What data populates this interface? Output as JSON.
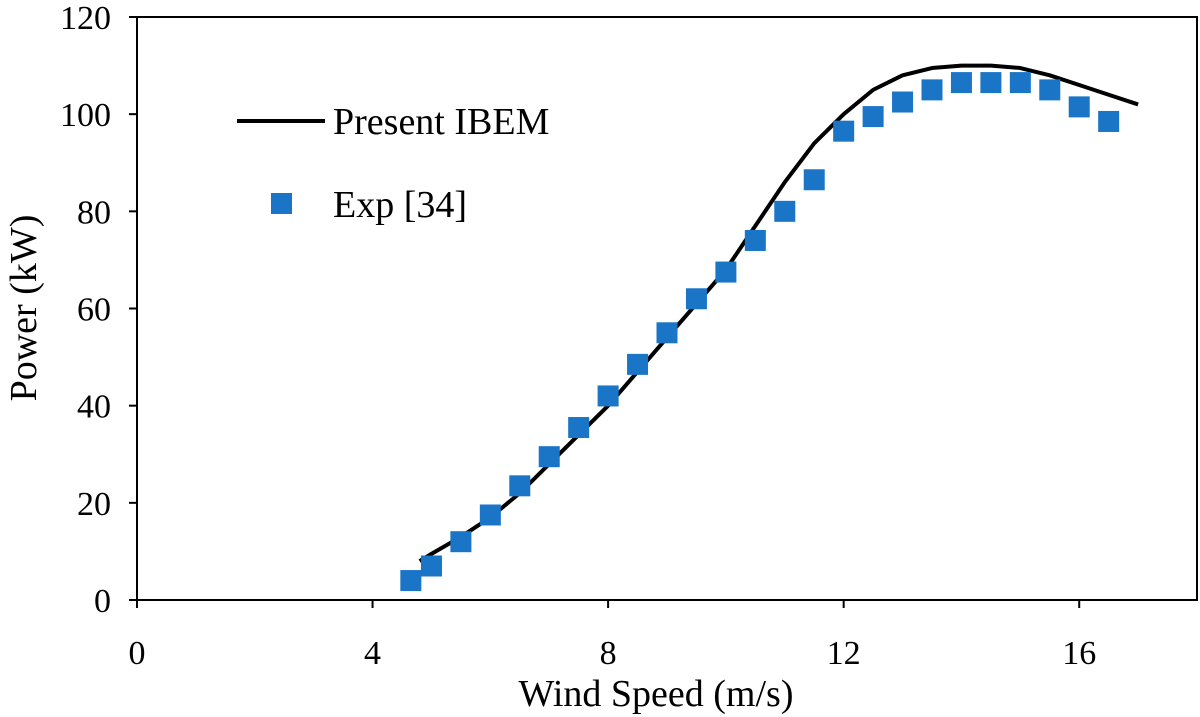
{
  "chart_data": {
    "type": "scatter",
    "title": "",
    "xlabel": "Wind Speed (m/s)",
    "ylabel": "Power (kW)",
    "xlim": [
      0,
      18
    ],
    "ylim": [
      0,
      120
    ],
    "xticks": [
      0,
      4,
      8,
      12,
      16
    ],
    "yticks": [
      0,
      20,
      40,
      60,
      80,
      100,
      120
    ],
    "xtick_labels": [
      "0",
      "4",
      "8",
      "12",
      "16"
    ],
    "ytick_labels": [
      "0",
      "20",
      "40",
      "60",
      "80",
      "100",
      "120"
    ],
    "grid": false,
    "legend_position": "top-left",
    "series": [
      {
        "name": "Present IBEM",
        "kind": "line",
        "color": "#000000",
        "x": [
          4.8,
          5.0,
          5.5,
          6.0,
          6.5,
          7.0,
          7.5,
          8.0,
          8.5,
          9.0,
          9.5,
          10.0,
          10.5,
          11.0,
          11.5,
          12.0,
          12.5,
          13.0,
          13.5,
          14.0,
          14.5,
          15.0,
          15.5,
          16.0,
          16.5,
          17.0
        ],
        "y": [
          8,
          9.5,
          13,
          17,
          22,
          28,
          34,
          40,
          47,
          54,
          61,
          68,
          77,
          86,
          94,
          100,
          105,
          108,
          109.5,
          110,
          110,
          109.5,
          108,
          106,
          104,
          102
        ]
      },
      {
        "name": "Exp [34]",
        "kind": "scatter",
        "marker": "square",
        "color": "#1a75c7",
        "x": [
          4.65,
          5.0,
          5.5,
          6.0,
          6.5,
          7.0,
          7.5,
          8.0,
          8.5,
          9.0,
          9.5,
          10.0,
          10.5,
          11.0,
          11.5,
          12.0,
          12.5,
          13.0,
          13.5,
          14.0,
          14.5,
          15.0,
          15.5,
          16.0,
          16.5
        ],
        "y": [
          4,
          7,
          12,
          17.5,
          23.5,
          29.5,
          35.5,
          42,
          48.5,
          55,
          62,
          67.5,
          74,
          80,
          86.5,
          96.5,
          99.5,
          102.5,
          105,
          106.5,
          106.5,
          106.5,
          105,
          101.5,
          98.5
        ]
      }
    ]
  }
}
